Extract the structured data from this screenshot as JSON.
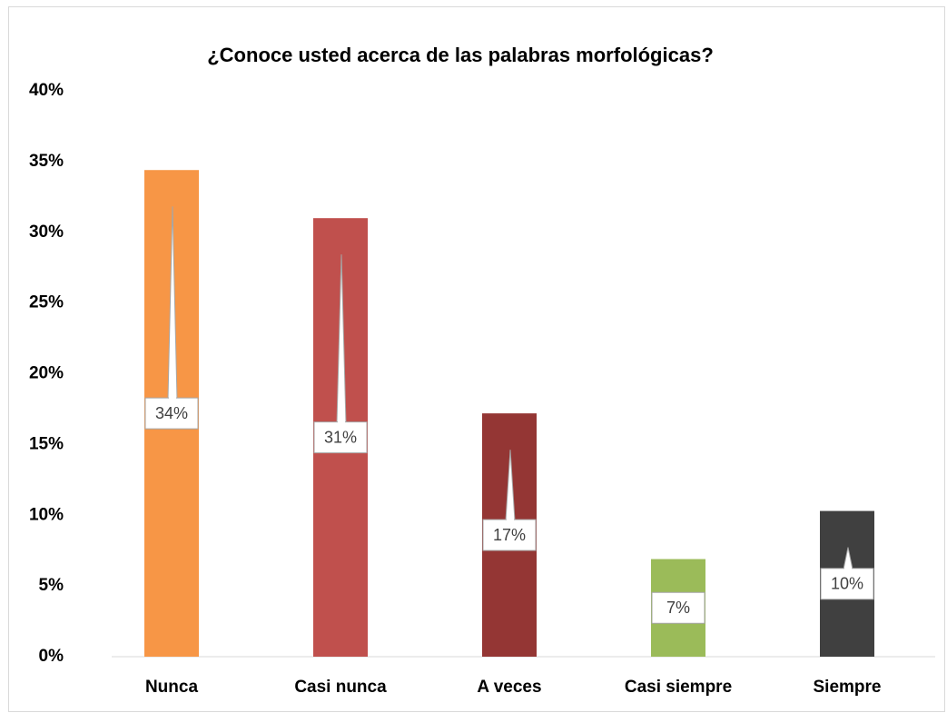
{
  "chart_data": {
    "type": "bar",
    "title": "¿Conoce usted acerca de las palabras morfológicas?",
    "categories": [
      "Nunca",
      "Casi nunca",
      "A veces",
      "Casi siempre",
      "Siempre"
    ],
    "values": [
      34.4,
      31.0,
      17.2,
      6.9,
      10.3
    ],
    "value_labels": [
      "34%",
      "31%",
      "17%",
      "7%",
      "10%"
    ],
    "colors": [
      "#f79646",
      "#c0504d",
      "#943634",
      "#9bbb59",
      "#404040"
    ],
    "ylim": [
      0,
      40
    ],
    "yticks": [
      {
        "value": 0,
        "label": "0%"
      },
      {
        "value": 5,
        "label": "5%"
      },
      {
        "value": 10,
        "label": "10%"
      },
      {
        "value": 15,
        "label": "15%"
      },
      {
        "value": 20,
        "label": "20%"
      },
      {
        "value": 25,
        "label": "25%"
      },
      {
        "value": 30,
        "label": "30%"
      },
      {
        "value": 35,
        "label": "35%"
      },
      {
        "value": 40,
        "label": "40%"
      }
    ],
    "grid": false
  }
}
